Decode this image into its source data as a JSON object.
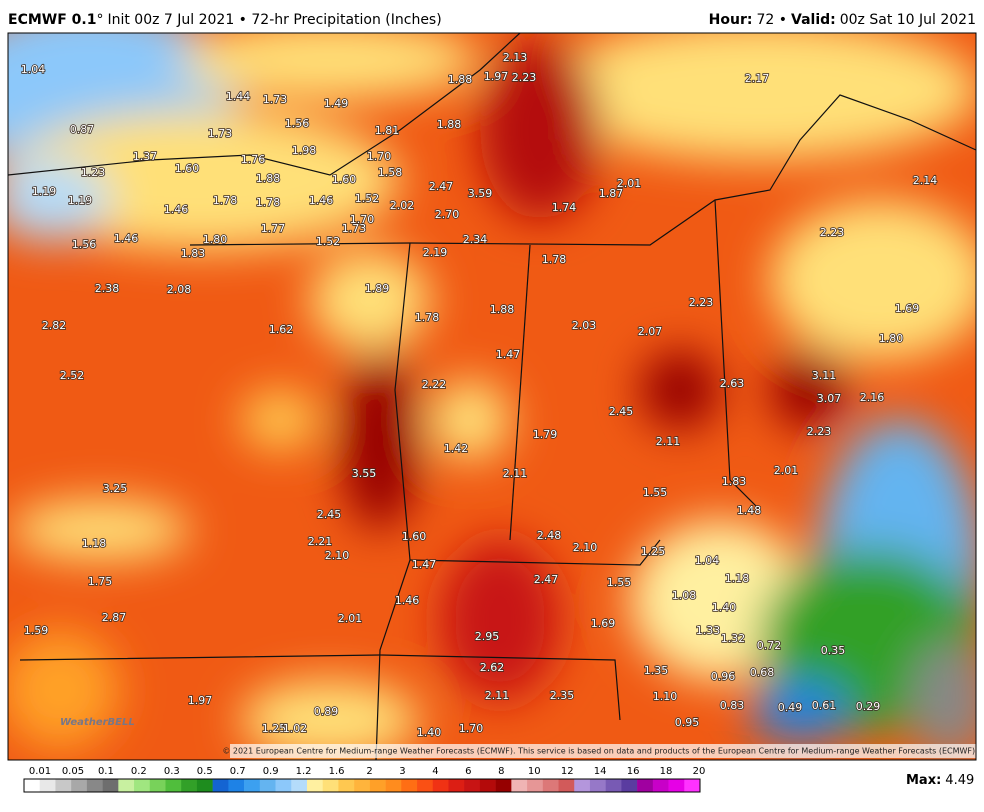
{
  "header": {
    "model": "ECMWF 0.1",
    "degree": "°",
    "init": "Init 00z 7 Jul 2021 • 72-hr Precipitation (Inches)",
    "hour_label": "Hour:",
    "hour": "72 •",
    "valid_label": "Valid:",
    "valid": "00z Sat 10 Jul 2021"
  },
  "map": {
    "labels": [
      "1.04",
      "2.13",
      "1.88",
      "1.97",
      "2.23",
      "2.17",
      "1.44",
      "1.73",
      "1.49",
      "0.87",
      "1.56",
      "1.73",
      "1.81",
      "1.88",
      "1.37",
      "1.98",
      "1.76",
      "1.70",
      "1.23",
      "1.60",
      "1.88",
      "1.60",
      "1.58",
      "2.47",
      "3.59",
      "2.01",
      "1.87",
      "2.14",
      "1.19",
      "1.19",
      "1.78",
      "1.78",
      "1.46",
      "1.52",
      "2.02",
      "1.74",
      "1.46",
      "2.70",
      "1.70",
      "1.77",
      "1.73",
      "2.23",
      "1.56",
      "1.46",
      "1.80",
      "1.52",
      "2.34",
      "1.83",
      "2.19",
      "1.78",
      "2.38",
      "2.08",
      "1.89",
      "2.23",
      "1.69",
      "1.88",
      "1.78",
      "2.82",
      "1.62",
      "2.03",
      "2.07",
      "1.80",
      "1.47",
      "2.52",
      "3.11",
      "2.22",
      "2.63",
      "2.16",
      "3.07",
      "2.45",
      "2.23",
      "1.79",
      "2.11",
      "1.42",
      "3.55",
      "2.11",
      "2.01",
      "1.83",
      "3.25",
      "1.55",
      "1.48",
      "2.45",
      "2.48",
      "1.60",
      "1.18",
      "2.21",
      "2.10",
      "1.25",
      "2.10",
      "1.04",
      "1.47",
      "2.47",
      "1.55",
      "1.18",
      "1.75",
      "1.08",
      "1.46",
      "1.40",
      "2.87",
      "2.01",
      "1.69",
      "1.33",
      "1.32",
      "1.59",
      "2.95",
      "0.72",
      "0.35",
      "1.35",
      "2.62",
      "0.96",
      "0.68",
      "1.97",
      "2.11",
      "2.35",
      "1.10",
      "0.83",
      "0.49",
      "0.61",
      "0.29",
      "0.89",
      "1.25",
      "1.02",
      "0.95",
      "1.40",
      "1.70"
    ],
    "copyright": "© 2021 European Centre for Medium-range Weather Forecasts (ECMWF). This service is based on data and products of the European Centre for Medium-range Weather Forecasts (ECMWF).",
    "watermark": "WeatherBELL"
  },
  "colorbar": {
    "labels": [
      "0.01",
      "0.05",
      "0.1",
      "0.2",
      "0.3",
      "0.5",
      "0.7",
      "0.9",
      "1.2",
      "1.6",
      "2",
      "3",
      "4",
      "6",
      "8",
      "10",
      "12",
      "14",
      "16",
      "18",
      "20"
    ],
    "colors": [
      "#ffffff",
      "#e8e8e8",
      "#c8c8c8",
      "#a8a8a8",
      "#888888",
      "#6e6e6e",
      "#c8f0a0",
      "#a0e680",
      "#78d25a",
      "#50be3c",
      "#32a028",
      "#1e8c1e",
      "#1464d2",
      "#1e82e6",
      "#3ca0f0",
      "#64b4f0",
      "#8cc8fa",
      "#b4dcfa",
      "#fff0a0",
      "#ffe078",
      "#ffc850",
      "#ffb43c",
      "#ffa028",
      "#ff8c1e",
      "#ff6e14",
      "#fa5014",
      "#f03214",
      "#dc1e14",
      "#c81414",
      "#b40a0a",
      "#960000",
      "#f0b4b4",
      "#e69696",
      "#dc7878",
      "#d25a5a",
      "#b496dc",
      "#9678c8",
      "#785ab4",
      "#5a3ca0",
      "#a000a0",
      "#c800c8",
      "#e600e6",
      "#ff32ff"
    ]
  },
  "footer": {
    "max_label": "Max:",
    "max": "4.49"
  }
}
